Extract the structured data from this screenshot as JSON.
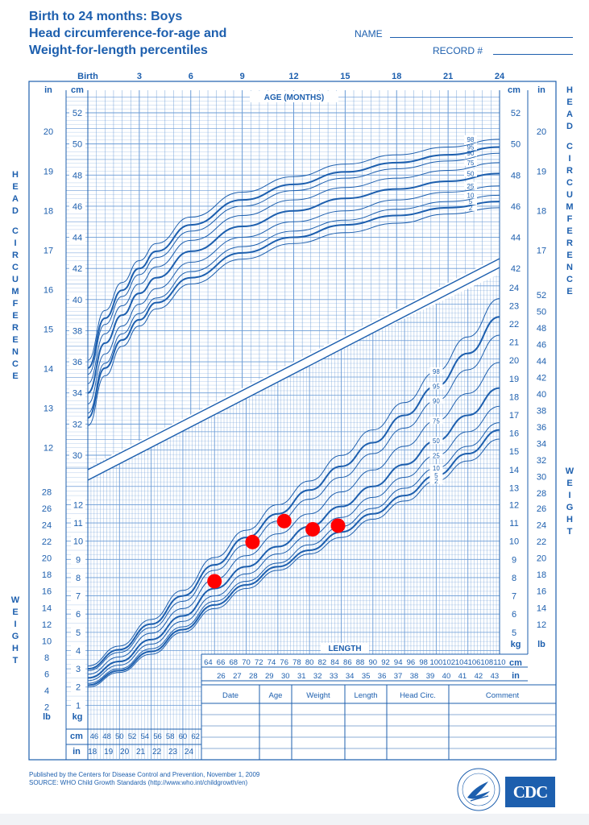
{
  "header": {
    "title_line1": "Birth to 24 months: Boys",
    "title_line2": "Head circumference-for-age and",
    "title_line3": "Weight-for-length percentiles",
    "name_label": "NAME",
    "record_label": "RECORD #"
  },
  "footer": {
    "line1": "Published by the Centers for Disease Control and Prevention, November 1, 2009",
    "line2": "SOURCE:  WHO Child Growth Standards (http://www.who.int/childgrowth/en)",
    "logo_text": "CDC"
  },
  "colors": {
    "ink": "#1d5fae",
    "grid": "#6a9bd6",
    "point": "#ff0000"
  },
  "chart_data": [
    {
      "type": "line",
      "panel": "head-circumference-for-age",
      "title": "AGE (MONTHS)",
      "xlabel": "AGE (MONTHS)",
      "ylabel": "HEAD CIRCUMFERENCE",
      "x_ticks": [
        {
          "value": 0,
          "label": "Birth"
        },
        {
          "value": 3,
          "label": "3"
        },
        {
          "value": 6,
          "label": "6"
        },
        {
          "value": 9,
          "label": "9"
        },
        {
          "value": 12,
          "label": "12"
        },
        {
          "value": 15,
          "label": "15"
        },
        {
          "value": 18,
          "label": "18"
        },
        {
          "value": 21,
          "label": "21"
        },
        {
          "value": 24,
          "label": "24"
        }
      ],
      "x_range": [
        0,
        24
      ],
      "y_range_cm": [
        29.2,
        53.2
      ],
      "cm_ticks": [
        30,
        32,
        34,
        36,
        38,
        40,
        42,
        44,
        46,
        48,
        50,
        52
      ],
      "in_ticks": [
        12,
        13,
        14,
        15,
        16,
        17,
        18,
        19,
        20
      ],
      "unit_cm": "cm",
      "unit_in": "in",
      "x": [
        0,
        1,
        2,
        3,
        4,
        6,
        9,
        12,
        15,
        18,
        21,
        24
      ],
      "series": [
        {
          "name": "2",
          "values": [
            31.9,
            35.1,
            37.0,
            38.3,
            39.4,
            41.0,
            42.6,
            43.6,
            44.3,
            44.9,
            45.5,
            45.9
          ]
        },
        {
          "name": "5",
          "values": [
            32.4,
            35.6,
            37.4,
            38.7,
            39.8,
            41.4,
            43.0,
            44.0,
            44.8,
            45.4,
            45.9,
            46.3
          ]
        },
        {
          "name": "10",
          "values": [
            32.7,
            35.9,
            37.8,
            39.1,
            40.1,
            41.8,
            43.4,
            44.4,
            45.1,
            45.8,
            46.3,
            46.7
          ]
        },
        {
          "name": "25",
          "values": [
            33.3,
            36.5,
            38.3,
            39.7,
            40.7,
            42.4,
            44.0,
            45.0,
            45.7,
            46.4,
            46.9,
            47.3
          ]
        },
        {
          "name": "50",
          "values": [
            34.0,
            37.2,
            39.0,
            40.4,
            41.4,
            43.1,
            44.7,
            45.7,
            46.5,
            47.1,
            47.6,
            48.1
          ]
        },
        {
          "name": "75",
          "values": [
            34.6,
            37.8,
            39.6,
            41.0,
            42.1,
            43.8,
            45.4,
            46.4,
            47.2,
            47.8,
            48.3,
            48.8
          ]
        },
        {
          "name": "90",
          "values": [
            35.2,
            38.4,
            40.2,
            41.6,
            42.7,
            44.4,
            46.0,
            47.0,
            47.8,
            48.4,
            48.9,
            49.4
          ]
        },
        {
          "name": "95",
          "values": [
            35.6,
            38.8,
            40.6,
            42.0,
            43.1,
            44.8,
            46.4,
            47.4,
            48.2,
            48.8,
            49.3,
            49.8
          ]
        },
        {
          "name": "98",
          "values": [
            36.1,
            39.3,
            41.1,
            42.5,
            43.6,
            45.3,
            46.9,
            47.9,
            48.7,
            49.3,
            49.8,
            50.3
          ]
        }
      ]
    },
    {
      "type": "line",
      "panel": "weight-for-length",
      "title": "LENGTH",
      "xlabel": "LENGTH",
      "ylabel": "WEIGHT",
      "x_range_cm": [
        45,
        110
      ],
      "y_range_kg": [
        0,
        24.75
      ],
      "kg_ticks_left": [
        1,
        2,
        3,
        4,
        5,
        6,
        7,
        8,
        9,
        10,
        11,
        12
      ],
      "lb_ticks_left": [
        2,
        4,
        6,
        8,
        10,
        12,
        14,
        16,
        18,
        20,
        22,
        24,
        26,
        28
      ],
      "kg_ticks_right": [
        5,
        6,
        7,
        8,
        9,
        10,
        11,
        12,
        13,
        14,
        15,
        16,
        17,
        18,
        19,
        20,
        21,
        22,
        23,
        24
      ],
      "lb_ticks_right": [
        12,
        14,
        16,
        18,
        20,
        22,
        24,
        26,
        28,
        30,
        32,
        34,
        36,
        38,
        40,
        42,
        44,
        46,
        48,
        50,
        52
      ],
      "cm_axis_lower": [
        "46",
        "48",
        "50",
        "52",
        "54",
        "56",
        "58",
        "60",
        "62"
      ],
      "in_axis_lower": [
        "18",
        "19",
        "20",
        "21",
        "22",
        "23",
        "24"
      ],
      "cm_axis_upper": [
        "64",
        "66",
        "68",
        "70",
        "72",
        "74",
        "76",
        "78",
        "80",
        "82",
        "84",
        "86",
        "88",
        "90",
        "92",
        "94",
        "96",
        "98",
        "100",
        "102",
        "104",
        "106",
        "108",
        "110"
      ],
      "in_axis_upper": [
        "26",
        "27",
        "28",
        "29",
        "30",
        "31",
        "32",
        "33",
        "34",
        "35",
        "36",
        "37",
        "38",
        "39",
        "40",
        "41",
        "42",
        "43"
      ],
      "unit_cm": "cm",
      "unit_in": "in",
      "unit_kg": "kg",
      "unit_lb": "lb",
      "x": [
        45,
        50,
        55,
        60,
        65,
        70,
        75,
        80,
        85,
        90,
        95,
        100,
        105,
        110
      ],
      "series": [
        {
          "name": "2",
          "values": [
            2.0,
            2.8,
            3.8,
            5.0,
            6.3,
            7.4,
            8.4,
            9.3,
            10.2,
            11.2,
            12.2,
            13.3,
            14.4,
            15.6
          ]
        },
        {
          "name": "5",
          "values": [
            2.1,
            2.9,
            3.95,
            5.15,
            6.5,
            7.6,
            8.6,
            9.5,
            10.5,
            11.5,
            12.5,
            13.6,
            14.8,
            16.1
          ]
        },
        {
          "name": "10",
          "values": [
            2.2,
            3.0,
            4.1,
            5.3,
            6.7,
            7.8,
            8.8,
            9.8,
            10.8,
            11.8,
            12.9,
            14.0,
            15.2,
            16.5
          ]
        },
        {
          "name": "25",
          "values": [
            2.35,
            3.2,
            4.35,
            5.6,
            7.0,
            8.2,
            9.3,
            10.3,
            11.3,
            12.4,
            13.5,
            14.7,
            16.0,
            17.4
          ]
        },
        {
          "name": "50",
          "values": [
            2.5,
            3.4,
            4.6,
            5.9,
            7.4,
            8.6,
            9.7,
            10.8,
            11.9,
            13.0,
            14.2,
            15.5,
            16.9,
            18.4
          ]
        },
        {
          "name": "75",
          "values": [
            2.7,
            3.65,
            4.95,
            6.3,
            7.9,
            9.2,
            10.4,
            11.5,
            12.7,
            13.9,
            15.2,
            16.6,
            18.1,
            19.8
          ]
        },
        {
          "name": "90",
          "values": [
            2.9,
            3.9,
            5.25,
            6.7,
            8.4,
            9.8,
            11.1,
            12.3,
            13.5,
            14.8,
            16.2,
            17.7,
            19.4,
            21.3
          ]
        },
        {
          "name": "95",
          "values": [
            3.0,
            4.05,
            5.45,
            7.0,
            8.7,
            10.2,
            11.5,
            12.8,
            14.1,
            15.4,
            16.9,
            18.5,
            20.3,
            22.3
          ]
        },
        {
          "name": "98",
          "values": [
            3.15,
            4.25,
            5.7,
            7.3,
            9.1,
            10.6,
            12.0,
            13.3,
            14.7,
            16.1,
            17.6,
            19.3,
            21.2,
            23.3
          ]
        }
      ],
      "points": [
        {
          "length_cm": 65.0,
          "weight_kg": 7.8
        },
        {
          "length_cm": 71.0,
          "weight_kg": 9.95
        },
        {
          "length_cm": 76.0,
          "weight_kg": 11.1
        },
        {
          "length_cm": 80.5,
          "weight_kg": 10.65
        },
        {
          "length_cm": 84.5,
          "weight_kg": 10.85
        }
      ]
    }
  ],
  "record_table": {
    "columns": [
      "Date",
      "Age",
      "Weight",
      "Length",
      "Head Circ.",
      "Comment"
    ],
    "rows": 5
  },
  "side_labels": {
    "head": "HEAD CIRCUMFERENCE",
    "weight": "WEIGHT"
  }
}
